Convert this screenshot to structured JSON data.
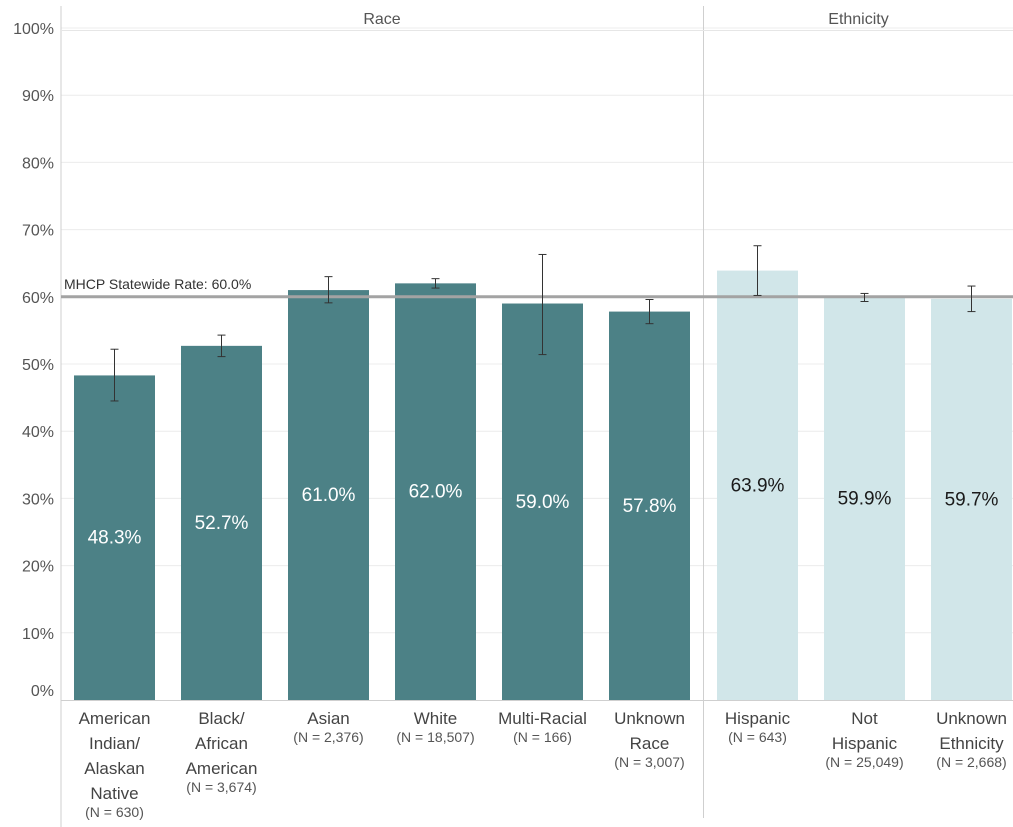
{
  "chart_data": {
    "type": "bar",
    "title": "",
    "xlabel": "",
    "ylabel": "",
    "ylim": [
      0,
      100
    ],
    "yticks": [
      "0%",
      "10%",
      "20%",
      "30%",
      "40%",
      "50%",
      "60%",
      "70%",
      "80%",
      "90%",
      "100%"
    ],
    "grid": true,
    "reference_line": {
      "label": "MHCP Statewide Rate: 60.0%",
      "value": 60.0,
      "color": "#a3a3a3"
    },
    "panels": [
      {
        "name": "Race",
        "color": "#4c8186",
        "label_color": "#ffffff",
        "bars": [
          {
            "category": [
              "American",
              "Indian/",
              "Alaskan",
              "Native"
            ],
            "n": "(N = 630)",
            "value": 48.3,
            "label": "48.3%",
            "ci": [
              44.5,
              52.2
            ]
          },
          {
            "category": [
              "Black/",
              "African",
              "American"
            ],
            "n": "(N = 3,674)",
            "value": 52.7,
            "label": "52.7%",
            "ci": [
              51.1,
              54.3
            ]
          },
          {
            "category": [
              "Asian"
            ],
            "n": "(N = 2,376)",
            "value": 61.0,
            "label": "61.0%",
            "ci": [
              59.1,
              63.0
            ]
          },
          {
            "category": [
              "White"
            ],
            "n": "(N = 18,507)",
            "value": 62.0,
            "label": "62.0%",
            "ci": [
              61.3,
              62.7
            ]
          },
          {
            "category": [
              "Multi-Racial"
            ],
            "n": "(N = 166)",
            "value": 59.0,
            "label": "59.0%",
            "ci": [
              51.4,
              66.3
            ]
          },
          {
            "category": [
              "Unknown",
              "Race"
            ],
            "n": "(N = 3,007)",
            "value": 57.8,
            "label": "57.8%",
            "ci": [
              56.0,
              59.6
            ]
          }
        ]
      },
      {
        "name": "Ethnicity",
        "color": "#d1e6e9",
        "label_color": "#1a1a1a",
        "bars": [
          {
            "category": [
              "Hispanic"
            ],
            "n": "(N = 643)",
            "value": 63.9,
            "label": "63.9%",
            "ci": [
              60.2,
              67.6
            ]
          },
          {
            "category": [
              "Not",
              "Hispanic"
            ],
            "n": "(N = 25,049)",
            "value": 59.9,
            "label": "59.9%",
            "ci": [
              59.3,
              60.5
            ]
          },
          {
            "category": [
              "Unknown",
              "Ethnicity"
            ],
            "n": "(N = 2,668)",
            "value": 59.7,
            "label": "59.7%",
            "ci": [
              57.8,
              61.6
            ]
          }
        ]
      }
    ]
  }
}
